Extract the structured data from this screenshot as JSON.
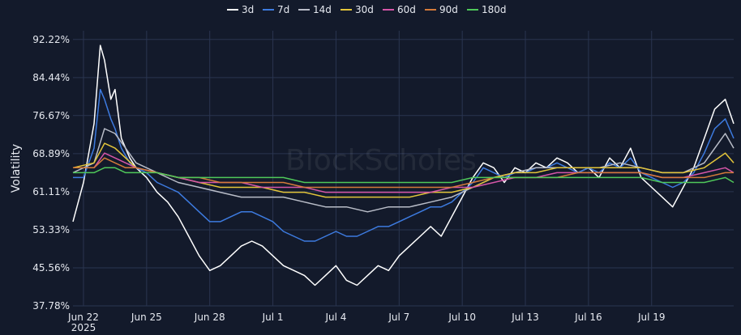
{
  "chart_data": {
    "type": "line",
    "title": "",
    "ylabel": "Volatility",
    "xlabel": "",
    "watermark": "BlockScholes",
    "legend_position": "top-center",
    "grid": true,
    "background": "#131a2b",
    "gridColor": "#2a3550",
    "textColor": "#e6e9f0",
    "ylim": [
      37.78,
      94.0
    ],
    "xlim": [
      0,
      31.4
    ],
    "yticks": [
      {
        "value": 92.22,
        "label": "92.22%"
      },
      {
        "value": 84.44,
        "label": "84.44%"
      },
      {
        "value": 76.67,
        "label": "76.67%"
      },
      {
        "value": 68.89,
        "label": "68.89%"
      },
      {
        "value": 61.11,
        "label": "61.11%"
      },
      {
        "value": 53.33,
        "label": "53.33%"
      },
      {
        "value": 45.56,
        "label": "45.56%"
      },
      {
        "value": 37.78,
        "label": "37.78%"
      }
    ],
    "xticks": [
      {
        "value": 0.5,
        "label": "Jun 22",
        "sublabel": "2025"
      },
      {
        "value": 3.5,
        "label": "Jun 25"
      },
      {
        "value": 6.5,
        "label": "Jun 28"
      },
      {
        "value": 9.5,
        "label": "Jul 1"
      },
      {
        "value": 12.5,
        "label": "Jul 4"
      },
      {
        "value": 15.5,
        "label": "Jul 7"
      },
      {
        "value": 18.5,
        "label": "Jul 10"
      },
      {
        "value": 21.5,
        "label": "Jul 13"
      },
      {
        "value": 24.5,
        "label": "Jul 16"
      },
      {
        "value": 27.5,
        "label": "Jul 19"
      }
    ],
    "series": [
      {
        "name": "3d",
        "color": "#ffffff",
        "x": [
          0,
          0.5,
          1.0,
          1.3,
          1.5,
          1.8,
          2.0,
          2.3,
          2.7,
          3.0,
          3.5,
          4.0,
          4.5,
          5.0,
          5.5,
          6.0,
          6.5,
          7.0,
          7.5,
          8.0,
          8.5,
          9.0,
          9.5,
          10.0,
          10.5,
          11.0,
          11.5,
          12.0,
          12.5,
          13.0,
          13.5,
          14.0,
          14.5,
          15.0,
          15.5,
          16.0,
          16.5,
          17.0,
          17.5,
          18.0,
          18.5,
          19.0,
          19.5,
          20.0,
          20.5,
          21.0,
          21.5,
          22.0,
          22.5,
          23.0,
          23.5,
          24.0,
          24.5,
          25.0,
          25.5,
          26.0,
          26.5,
          27.0,
          27.5,
          28.0,
          28.5,
          29.0,
          29.5,
          30.0,
          30.5,
          31.0,
          31.4
        ],
        "y": [
          55,
          63,
          75,
          91,
          88,
          80,
          82,
          72,
          68,
          66,
          64,
          61,
          59,
          56,
          52,
          48,
          45,
          46,
          48,
          50,
          51,
          50,
          48,
          46,
          45,
          44,
          42,
          44,
          46,
          43,
          42,
          44,
          46,
          45,
          48,
          50,
          52,
          54,
          52,
          56,
          60,
          64,
          67,
          66,
          63,
          66,
          65,
          67,
          66,
          68,
          67,
          65,
          66,
          64,
          68,
          66,
          70,
          64,
          62,
          60,
          58,
          62,
          66,
          72,
          78,
          80,
          75
        ]
      },
      {
        "name": "7d",
        "color": "#3d7be0",
        "x": [
          0,
          0.5,
          1.0,
          1.3,
          1.5,
          1.8,
          2.0,
          2.3,
          2.7,
          3.0,
          3.5,
          4.0,
          4.5,
          5.0,
          5.5,
          6.0,
          6.5,
          7.0,
          7.5,
          8.0,
          8.5,
          9.0,
          9.5,
          10.0,
          10.5,
          11.0,
          11.5,
          12.0,
          12.5,
          13.0,
          13.5,
          14.0,
          14.5,
          15.0,
          15.5,
          16.0,
          16.5,
          17.0,
          17.5,
          18.0,
          18.5,
          19.0,
          19.5,
          20.0,
          20.5,
          21.0,
          21.5,
          22.0,
          22.5,
          23.0,
          23.5,
          24.0,
          24.5,
          25.0,
          25.5,
          26.0,
          26.5,
          27.0,
          27.5,
          28.0,
          28.5,
          29.0,
          29.5,
          30.0,
          30.5,
          31.0,
          31.4
        ],
        "y": [
          64,
          64,
          70,
          82,
          80,
          76,
          74,
          70,
          67,
          66,
          65,
          63,
          62,
          61,
          59,
          57,
          55,
          55,
          56,
          57,
          57,
          56,
          55,
          53,
          52,
          51,
          51,
          52,
          53,
          52,
          52,
          53,
          54,
          54,
          55,
          56,
          57,
          58,
          58,
          59,
          61,
          63,
          66,
          65,
          64,
          65,
          65,
          66,
          66,
          67,
          66,
          65,
          66,
          65,
          67,
          66,
          68,
          65,
          64,
          63,
          62,
          63,
          65,
          69,
          74,
          76,
          72
        ]
      },
      {
        "name": "14d",
        "color": "#b9bdc8",
        "x": [
          0,
          1,
          1.5,
          2,
          2.5,
          3,
          4,
          5,
          6,
          7,
          8,
          9,
          10,
          11,
          12,
          13,
          14,
          15,
          16,
          17,
          18,
          19,
          20,
          21,
          22,
          23,
          24,
          25,
          26,
          27,
          28,
          29,
          30,
          31,
          31.4
        ],
        "y": [
          65,
          67,
          74,
          73,
          70,
          67,
          65,
          63,
          62,
          61,
          60,
          60,
          60,
          59,
          58,
          58,
          57,
          58,
          58,
          59,
          60,
          62,
          64,
          65,
          66,
          66,
          66,
          66,
          67,
          66,
          65,
          65,
          67,
          73,
          70
        ]
      },
      {
        "name": "30d",
        "color": "#e3c53a",
        "x": [
          0,
          1,
          1.5,
          2,
          2.5,
          3,
          4,
          5,
          6,
          7,
          8,
          9,
          10,
          11,
          12,
          13,
          14,
          15,
          16,
          17,
          18,
          19,
          20,
          21,
          22,
          23,
          24,
          25,
          26,
          27,
          28,
          29,
          30,
          31,
          31.4
        ],
        "y": [
          66,
          67,
          71,
          70,
          68,
          66,
          65,
          64,
          63,
          62,
          62,
          62,
          61,
          61,
          60,
          60,
          60,
          60,
          60,
          61,
          61,
          62,
          64,
          65,
          65,
          66,
          66,
          66,
          66,
          66,
          65,
          65,
          66,
          69,
          67
        ]
      },
      {
        "name": "60d",
        "color": "#d556a8",
        "x": [
          0,
          1,
          1.5,
          2,
          2.5,
          3,
          4,
          5,
          6,
          7,
          8,
          9,
          10,
          11,
          12,
          13,
          14,
          15,
          16,
          17,
          18,
          19,
          20,
          21,
          22,
          23,
          24,
          25,
          26,
          27,
          28,
          29,
          30,
          31,
          31.4
        ],
        "y": [
          66,
          66,
          69,
          68,
          67,
          66,
          65,
          64,
          63,
          63,
          63,
          62,
          62,
          62,
          61,
          61,
          61,
          61,
          61,
          61,
          62,
          62,
          63,
          64,
          64,
          65,
          65,
          65,
          65,
          65,
          64,
          64,
          65,
          66,
          65
        ]
      },
      {
        "name": "90d",
        "color": "#d47a3a",
        "x": [
          0,
          1,
          1.5,
          2,
          2.5,
          3,
          4,
          5,
          6,
          7,
          8,
          9,
          10,
          11,
          12,
          13,
          14,
          15,
          16,
          17,
          18,
          19,
          20,
          21,
          22,
          23,
          24,
          25,
          26,
          27,
          28,
          29,
          30,
          31,
          31.4
        ],
        "y": [
          66,
          66,
          68,
          67,
          66,
          66,
          65,
          64,
          64,
          63,
          63,
          63,
          63,
          62,
          62,
          62,
          62,
          62,
          62,
          62,
          62,
          63,
          64,
          64,
          64,
          64,
          65,
          65,
          65,
          65,
          64,
          64,
          64,
          65,
          65
        ]
      },
      {
        "name": "180d",
        "color": "#4fc85a",
        "x": [
          0,
          1,
          1.5,
          2,
          2.5,
          3,
          4,
          5,
          6,
          7,
          8,
          9,
          10,
          11,
          12,
          13,
          14,
          15,
          16,
          17,
          18,
          19,
          20,
          21,
          22,
          23,
          24,
          25,
          26,
          27,
          28,
          29,
          30,
          31,
          31.4
        ],
        "y": [
          65,
          65,
          66,
          66,
          65,
          65,
          65,
          64,
          64,
          64,
          64,
          64,
          64,
          63,
          63,
          63,
          63,
          63,
          63,
          63,
          63,
          64,
          64,
          64,
          64,
          64,
          64,
          64,
          64,
          64,
          63,
          63,
          63,
          64,
          63
        ]
      }
    ]
  }
}
